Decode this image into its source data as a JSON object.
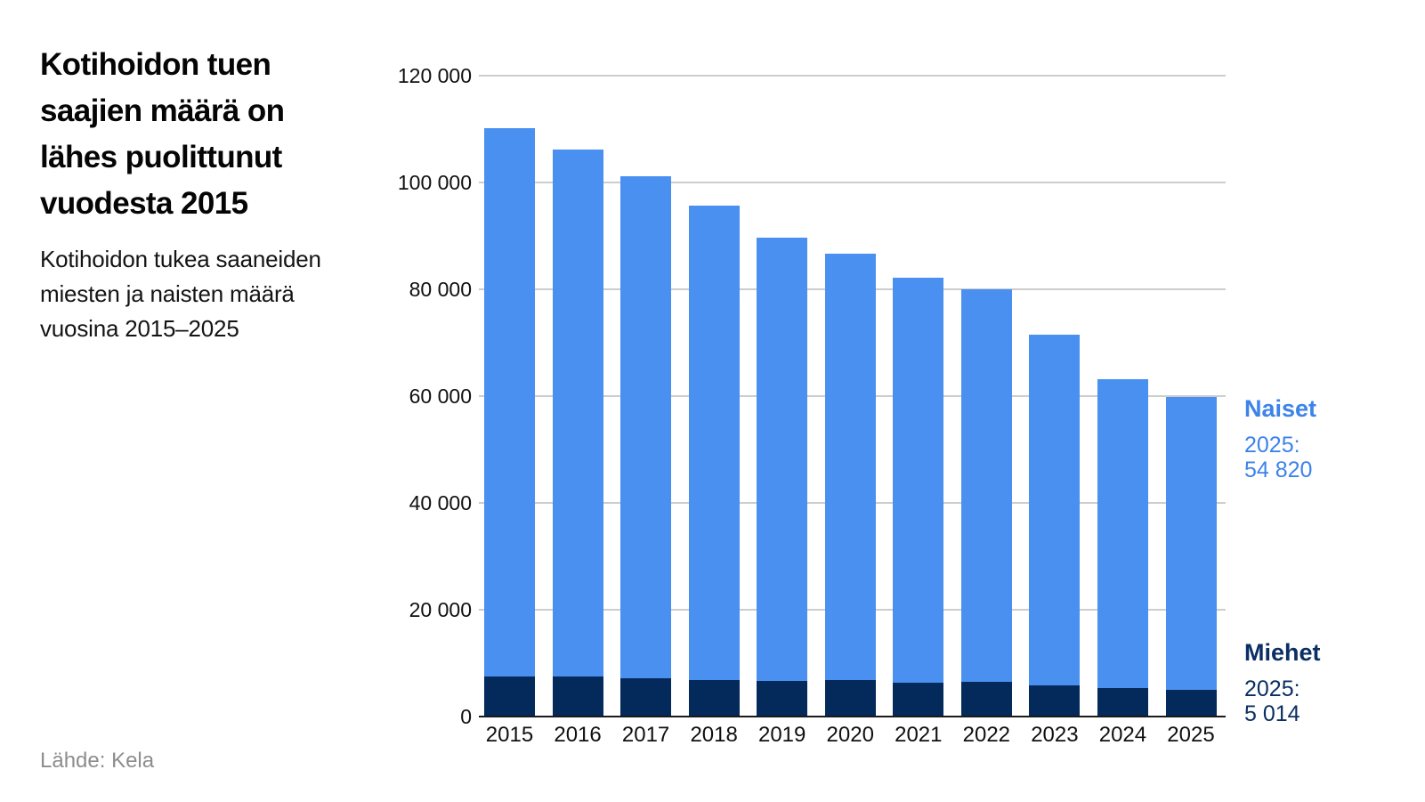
{
  "chart_data": {
    "type": "bar",
    "stacked": true,
    "title": "Kotihoidon tuen saajien määrä on lähes puolittunut vuodesta 2015",
    "subtitle": "Kotihoidon tukea saaneiden miesten ja naisten määrä vuosina 2015–2025",
    "source": "Lähde: Kela",
    "categories": [
      "2015",
      "2016",
      "2017",
      "2018",
      "2019",
      "2020",
      "2021",
      "2022",
      "2023",
      "2024",
      "2025"
    ],
    "series": [
      {
        "name": "Miehet",
        "color": "#04295B",
        "values": [
          7500,
          7500,
          7200,
          6900,
          6600,
          6800,
          6400,
          6500,
          5900,
          5300,
          5014
        ]
      },
      {
        "name": "Naiset",
        "color": "#4A90F0",
        "values": [
          102600,
          98600,
          93900,
          88800,
          83100,
          79900,
          75700,
          73500,
          65600,
          57900,
          54820
        ]
      }
    ],
    "totals": [
      110100,
      106100,
      101100,
      95700,
      89700,
      86700,
      82100,
      80000,
      71500,
      63200,
      59834
    ],
    "ylim": [
      0,
      120000
    ],
    "ytick_interval": 20000,
    "yticks": [
      {
        "value": 0,
        "label": "0"
      },
      {
        "value": 20000,
        "label": "20 000"
      },
      {
        "value": 40000,
        "label": "40 000"
      },
      {
        "value": 60000,
        "label": "60 000"
      },
      {
        "value": 80000,
        "label": "80 000"
      },
      {
        "value": 100000,
        "label": "100 000"
      },
      {
        "value": 120000,
        "label": "120 000"
      }
    ],
    "grid": true,
    "legend_position": "right",
    "style": {
      "grid_color": "#cdcdcd",
      "axis_color": "#1a1a1a",
      "naiset_text_color": "#3c83ea",
      "miehet_text_color": "#0b2e63"
    },
    "annotations": {
      "naiset": {
        "label": "Naiset",
        "line1": "2025:",
        "line2": "54 820"
      },
      "miehet": {
        "label": "Miehet",
        "line1": "2025:",
        "line2": "5 014"
      }
    }
  }
}
